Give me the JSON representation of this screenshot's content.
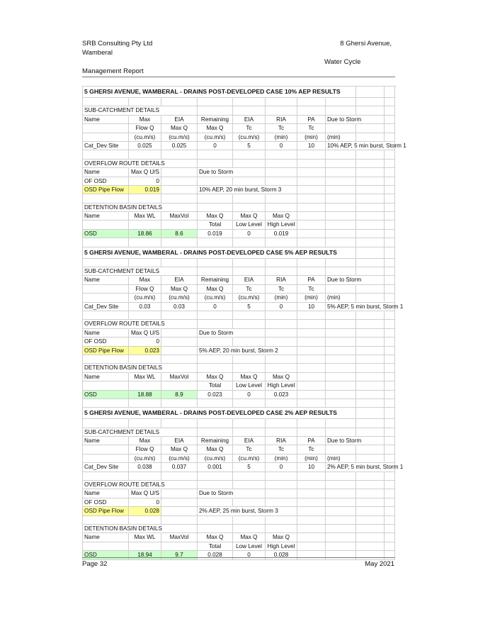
{
  "header": {
    "company": "SRB Consulting Pty Ltd",
    "location": "Wamberal",
    "address": "8 Ghersi Avenue,",
    "report_line1": "Water Cycle",
    "report_line2": "Management Report"
  },
  "footer": {
    "page": "Page 32",
    "date": "May 2021"
  },
  "colors": {
    "highlight_yellow": "#ffff99",
    "highlight_green": "#ccffcc",
    "gridline": "#cfcfcf"
  },
  "sections": [
    {
      "title": "5 GHERSI AVENUE, WAMBERAL - DRAINS POST-DEVELOPED CASE 10% AEP RESULTS",
      "subcatchment": {
        "heading": "SUB-CATCHMENT DETAILS",
        "header_rows": [
          [
            "Name",
            "Max",
            "EIA",
            "Remaining",
            "EIA",
            "RIA",
            "PA",
            "Due to Storm"
          ],
          [
            "",
            "Flow Q",
            "Max Q",
            "Max Q",
            "Tc",
            "Tc",
            "Tc",
            ""
          ],
          [
            "",
            "(cu.m/s)",
            "(cu.m/s)",
            "(cu.m/s)",
            "(cu.m/s)",
            "(min)",
            "(min)",
            "(min)"
          ]
        ],
        "row": [
          "Cat_Dev Site",
          "0.025",
          "0.025",
          "0",
          "5",
          "0",
          "10",
          "10% AEP, 5 min burst, Storm 1"
        ]
      },
      "overflow": {
        "heading": "OVERFLOW ROUTE DETAILS",
        "header": [
          "Name",
          "Max Q U/S",
          "",
          "Due to Storm"
        ],
        "rows": [
          [
            "OF OSD",
            "0",
            "",
            ""
          ],
          [
            "OSD Pipe Flow",
            "0.019",
            "",
            "10% AEP, 20 min burst, Storm 3"
          ]
        ]
      },
      "detention": {
        "heading": "DETENTION BASIN DETAILS",
        "header_rows": [
          [
            "Name",
            "Max WL",
            "MaxVol",
            "Max Q",
            "Max Q",
            "Max Q"
          ],
          [
            "",
            "",
            "",
            "Total",
            "Low Level",
            "High Level"
          ]
        ],
        "row": [
          "OSD",
          "18.86",
          "8.6",
          "0.019",
          "0",
          "0.019"
        ]
      }
    },
    {
      "title": "5 GHERSI AVENUE, WAMBERAL - DRAINS POST-DEVELOPED CASE 5% AEP RESULTS",
      "subcatchment": {
        "heading": "SUB-CATCHMENT DETAILS",
        "header_rows": [
          [
            "Name",
            "Max",
            "EIA",
            "Remaining",
            "EIA",
            "RIA",
            "PA",
            "Due to Storm"
          ],
          [
            "",
            "Flow Q",
            "Max Q",
            "Max Q",
            "Tc",
            "Tc",
            "Tc",
            ""
          ],
          [
            "",
            "(cu.m/s)",
            "(cu.m/s)",
            "(cu.m/s)",
            "(cu.m/s)",
            "(min)",
            "(min)",
            "(min)"
          ]
        ],
        "row": [
          "Cat_Dev Site",
          "0.03",
          "0.03",
          "0",
          "5",
          "0",
          "10",
          "5% AEP, 5 min burst, Storm 1"
        ]
      },
      "overflow": {
        "heading": "OVERFLOW ROUTE DETAILS",
        "header": [
          "Name",
          "Max Q U/S",
          "",
          "Due to Storm"
        ],
        "rows": [
          [
            "OF OSD",
            "0",
            "",
            ""
          ],
          [
            "OSD Pipe Flow",
            "0.023",
            "",
            "5% AEP, 20 min burst, Storm 2"
          ]
        ]
      },
      "detention": {
        "heading": "DETENTION BASIN DETAILS",
        "header_rows": [
          [
            "Name",
            "Max WL",
            "MaxVol",
            "Max Q",
            "Max Q",
            "Max Q"
          ],
          [
            "",
            "",
            "",
            "Total",
            "Low Level",
            "High Level"
          ]
        ],
        "row": [
          "OSD",
          "18.88",
          "8.9",
          "0.023",
          "0",
          "0.023"
        ]
      }
    },
    {
      "title": "5 GHERSI AVENUE, WAMBERAL - DRAINS POST-DEVELOPED CASE 2% AEP RESULTS",
      "subcatchment": {
        "heading": "SUB-CATCHMENT DETAILS",
        "header_rows": [
          [
            "Name",
            "Max",
            "EIA",
            "Remaining",
            "EIA",
            "RIA",
            "PA",
            "Due to Storm"
          ],
          [
            "",
            "Flow Q",
            "Max Q",
            "Max Q",
            "Tc",
            "Tc",
            "Tc",
            ""
          ],
          [
            "",
            "(cu.m/s)",
            "(cu.m/s)",
            "(cu.m/s)",
            "(cu.m/s)",
            "(min)",
            "(min)",
            "(min)"
          ]
        ],
        "row": [
          "Cat_Dev Site",
          "0.038",
          "0.037",
          "0.001",
          "5",
          "0",
          "10",
          "2% AEP, 5 min burst, Storm 1"
        ]
      },
      "overflow": {
        "heading": "OVERFLOW ROUTE DETAILS",
        "header": [
          "Name",
          "Max Q U/S",
          "",
          "Due to Storm"
        ],
        "rows": [
          [
            "OF OSD",
            "0",
            "",
            ""
          ],
          [
            "OSD Pipe Flow",
            "0.028",
            "",
            "2% AEP, 25 min burst, Storm 3"
          ]
        ]
      },
      "detention": {
        "heading": "DETENTION BASIN DETAILS",
        "header_rows": [
          [
            "Name",
            "Max WL",
            "MaxVol",
            "Max Q",
            "Max Q",
            "Max Q"
          ],
          [
            "",
            "",
            "",
            "Total",
            "Low Level",
            "High Level"
          ]
        ],
        "row": [
          "OSD",
          "18.94",
          "9.7",
          "0.028",
          "0",
          "0.028"
        ]
      }
    }
  ]
}
